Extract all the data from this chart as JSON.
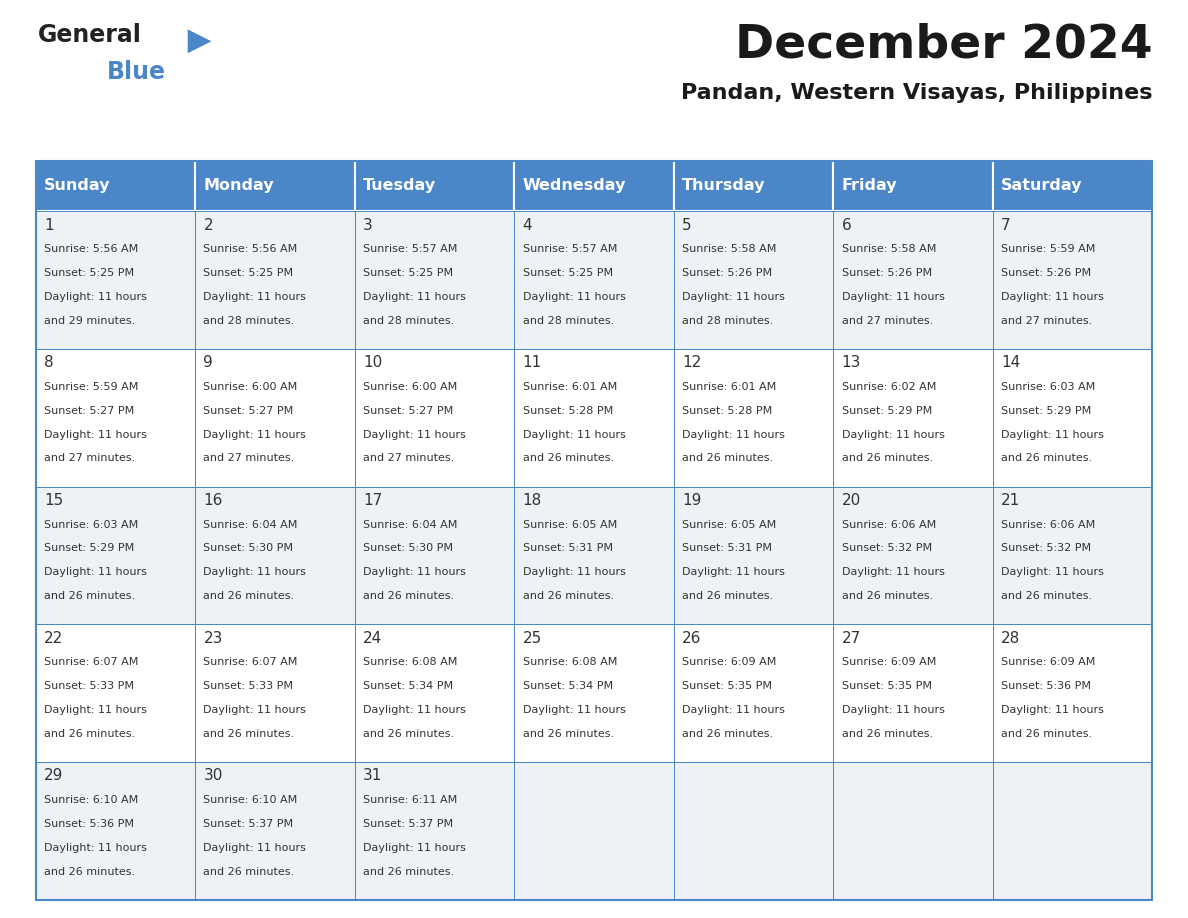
{
  "title": "December 2024",
  "subtitle": "Pandan, Western Visayas, Philippines",
  "days_of_week": [
    "Sunday",
    "Monday",
    "Tuesday",
    "Wednesday",
    "Thursday",
    "Friday",
    "Saturday"
  ],
  "header_bg_color": "#4a86c8",
  "header_text_color": "#ffffff",
  "cell_bg_color_odd": "#eef2f7",
  "cell_bg_color_even": "#ffffff",
  "grid_color": "#4a86c8",
  "day_num_color": "#333333",
  "text_color": "#333333",
  "title_color": "#1a1a1a",
  "subtitle_color": "#1a1a1a",
  "days": [
    {
      "date": 1,
      "dow": 0,
      "sunrise": "5:56 AM",
      "sunset": "5:25 PM",
      "daylight": "11 hours and 29 minutes."
    },
    {
      "date": 2,
      "dow": 1,
      "sunrise": "5:56 AM",
      "sunset": "5:25 PM",
      "daylight": "11 hours and 28 minutes."
    },
    {
      "date": 3,
      "dow": 2,
      "sunrise": "5:57 AM",
      "sunset": "5:25 PM",
      "daylight": "11 hours and 28 minutes."
    },
    {
      "date": 4,
      "dow": 3,
      "sunrise": "5:57 AM",
      "sunset": "5:25 PM",
      "daylight": "11 hours and 28 minutes."
    },
    {
      "date": 5,
      "dow": 4,
      "sunrise": "5:58 AM",
      "sunset": "5:26 PM",
      "daylight": "11 hours and 28 minutes."
    },
    {
      "date": 6,
      "dow": 5,
      "sunrise": "5:58 AM",
      "sunset": "5:26 PM",
      "daylight": "11 hours and 27 minutes."
    },
    {
      "date": 7,
      "dow": 6,
      "sunrise": "5:59 AM",
      "sunset": "5:26 PM",
      "daylight": "11 hours and 27 minutes."
    },
    {
      "date": 8,
      "dow": 0,
      "sunrise": "5:59 AM",
      "sunset": "5:27 PM",
      "daylight": "11 hours and 27 minutes."
    },
    {
      "date": 9,
      "dow": 1,
      "sunrise": "6:00 AM",
      "sunset": "5:27 PM",
      "daylight": "11 hours and 27 minutes."
    },
    {
      "date": 10,
      "dow": 2,
      "sunrise": "6:00 AM",
      "sunset": "5:27 PM",
      "daylight": "11 hours and 27 minutes."
    },
    {
      "date": 11,
      "dow": 3,
      "sunrise": "6:01 AM",
      "sunset": "5:28 PM",
      "daylight": "11 hours and 26 minutes."
    },
    {
      "date": 12,
      "dow": 4,
      "sunrise": "6:01 AM",
      "sunset": "5:28 PM",
      "daylight": "11 hours and 26 minutes."
    },
    {
      "date": 13,
      "dow": 5,
      "sunrise": "6:02 AM",
      "sunset": "5:29 PM",
      "daylight": "11 hours and 26 minutes."
    },
    {
      "date": 14,
      "dow": 6,
      "sunrise": "6:03 AM",
      "sunset": "5:29 PM",
      "daylight": "11 hours and 26 minutes."
    },
    {
      "date": 15,
      "dow": 0,
      "sunrise": "6:03 AM",
      "sunset": "5:29 PM",
      "daylight": "11 hours and 26 minutes."
    },
    {
      "date": 16,
      "dow": 1,
      "sunrise": "6:04 AM",
      "sunset": "5:30 PM",
      "daylight": "11 hours and 26 minutes."
    },
    {
      "date": 17,
      "dow": 2,
      "sunrise": "6:04 AM",
      "sunset": "5:30 PM",
      "daylight": "11 hours and 26 minutes."
    },
    {
      "date": 18,
      "dow": 3,
      "sunrise": "6:05 AM",
      "sunset": "5:31 PM",
      "daylight": "11 hours and 26 minutes."
    },
    {
      "date": 19,
      "dow": 4,
      "sunrise": "6:05 AM",
      "sunset": "5:31 PM",
      "daylight": "11 hours and 26 minutes."
    },
    {
      "date": 20,
      "dow": 5,
      "sunrise": "6:06 AM",
      "sunset": "5:32 PM",
      "daylight": "11 hours and 26 minutes."
    },
    {
      "date": 21,
      "dow": 6,
      "sunrise": "6:06 AM",
      "sunset": "5:32 PM",
      "daylight": "11 hours and 26 minutes."
    },
    {
      "date": 22,
      "dow": 0,
      "sunrise": "6:07 AM",
      "sunset": "5:33 PM",
      "daylight": "11 hours and 26 minutes."
    },
    {
      "date": 23,
      "dow": 1,
      "sunrise": "6:07 AM",
      "sunset": "5:33 PM",
      "daylight": "11 hours and 26 minutes."
    },
    {
      "date": 24,
      "dow": 2,
      "sunrise": "6:08 AM",
      "sunset": "5:34 PM",
      "daylight": "11 hours and 26 minutes."
    },
    {
      "date": 25,
      "dow": 3,
      "sunrise": "6:08 AM",
      "sunset": "5:34 PM",
      "daylight": "11 hours and 26 minutes."
    },
    {
      "date": 26,
      "dow": 4,
      "sunrise": "6:09 AM",
      "sunset": "5:35 PM",
      "daylight": "11 hours and 26 minutes."
    },
    {
      "date": 27,
      "dow": 5,
      "sunrise": "6:09 AM",
      "sunset": "5:35 PM",
      "daylight": "11 hours and 26 minutes."
    },
    {
      "date": 28,
      "dow": 6,
      "sunrise": "6:09 AM",
      "sunset": "5:36 PM",
      "daylight": "11 hours and 26 minutes."
    },
    {
      "date": 29,
      "dow": 0,
      "sunrise": "6:10 AM",
      "sunset": "5:36 PM",
      "daylight": "11 hours and 26 minutes."
    },
    {
      "date": 30,
      "dow": 1,
      "sunrise": "6:10 AM",
      "sunset": "5:37 PM",
      "daylight": "11 hours and 26 minutes."
    },
    {
      "date": 31,
      "dow": 2,
      "sunrise": "6:11 AM",
      "sunset": "5:37 PM",
      "daylight": "11 hours and 26 minutes."
    }
  ]
}
